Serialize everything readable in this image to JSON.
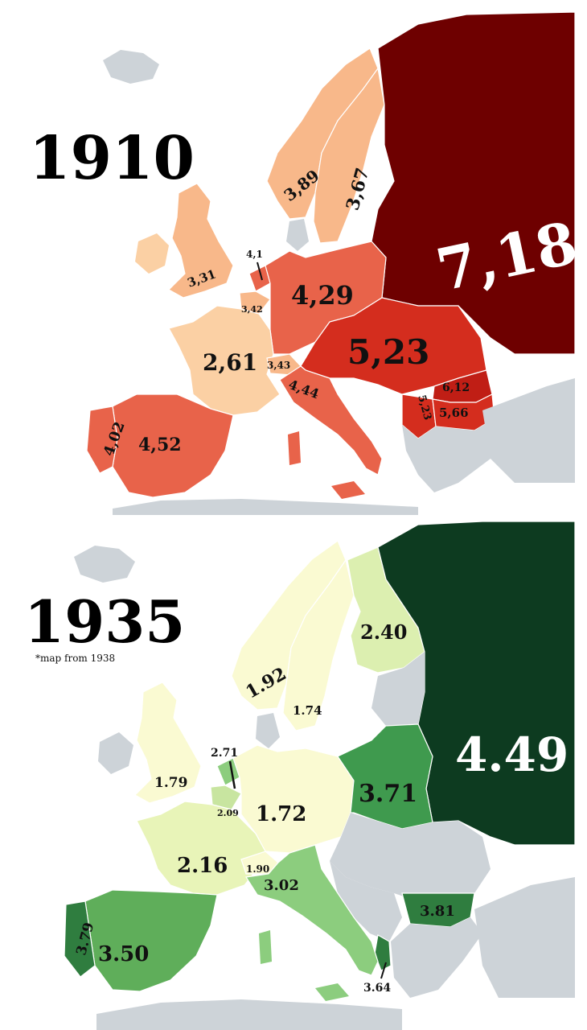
{
  "maps": [
    {
      "year": "1910",
      "regions": [
        {
          "name": "Russia",
          "value": "7,18",
          "color": "#6e0000"
        },
        {
          "name": "Austria-Hungary",
          "value": "5,23",
          "color": "#d42d1e"
        },
        {
          "name": "Germany",
          "value": "4,29",
          "color": "#e8634a"
        },
        {
          "name": "Romania",
          "value": "6,12",
          "color": "#c01e15"
        },
        {
          "name": "Serbia",
          "value": "5,23",
          "color": "#d42d1e"
        },
        {
          "name": "Bulgaria",
          "value": "5,66",
          "color": "#d42d1e"
        },
        {
          "name": "Italy",
          "value": "4,44",
          "color": "#e8634a"
        },
        {
          "name": "Spain",
          "value": "4,52",
          "color": "#e8634a"
        },
        {
          "name": "Portugal",
          "value": "4,02",
          "color": "#e8634a"
        },
        {
          "name": "France",
          "value": "2,61",
          "color": "#fbd0a4"
        },
        {
          "name": "Switzerland",
          "value": "3,43",
          "color": "#f8b88a"
        },
        {
          "name": "Belgium",
          "value": "3,42",
          "color": "#f8b88a"
        },
        {
          "name": "Netherlands",
          "value": "4,1",
          "color": "#e8634a"
        },
        {
          "name": "United Kingdom",
          "value": "3,31",
          "color": "#f8b88a"
        },
        {
          "name": "Norway",
          "value": "3,89",
          "color": "#f8b88a"
        },
        {
          "name": "Sweden",
          "value": "3,67",
          "color": "#f8b88a"
        }
      ]
    },
    {
      "year": "1935",
      "note": "*map from 1938",
      "regions": [
        {
          "name": "Soviet Union",
          "value": "4.49",
          "color": "#0d3b20"
        },
        {
          "name": "Poland",
          "value": "3.71",
          "color": "#3f9a4e"
        },
        {
          "name": "Bulgaria",
          "value": "3.81",
          "color": "#2f7d3f"
        },
        {
          "name": "Albania",
          "value": "3.64",
          "color": "#2f7d3f"
        },
        {
          "name": "Spain",
          "value": "3.50",
          "color": "#5fae5a"
        },
        {
          "name": "Portugal",
          "value": "3.79",
          "color": "#2f7d3f"
        },
        {
          "name": "Italy",
          "value": "3.02",
          "color": "#8ccd7e"
        },
        {
          "name": "Finland",
          "value": "2.40",
          "color": "#dcefb0"
        },
        {
          "name": "Netherlands",
          "value": "2.71",
          "color": "#8ccd7e"
        },
        {
          "name": "Belgium",
          "value": "2.09",
          "color": "#c8e5a0"
        },
        {
          "name": "France",
          "value": "2.16",
          "color": "#e8f4b8"
        },
        {
          "name": "Switzerland",
          "value": "1.90",
          "color": "#fafad2"
        },
        {
          "name": "Germany",
          "value": "1.72",
          "color": "#fafad2"
        },
        {
          "name": "United Kingdom",
          "value": "1.79",
          "color": "#fafad2"
        },
        {
          "name": "Norway",
          "value": "1.92",
          "color": "#fafad2"
        },
        {
          "name": "Sweden",
          "value": "1.74",
          "color": "#fafad2"
        }
      ]
    }
  ],
  "colors": {
    "no_data": "#cdd3d8",
    "background": "#ffffff"
  }
}
